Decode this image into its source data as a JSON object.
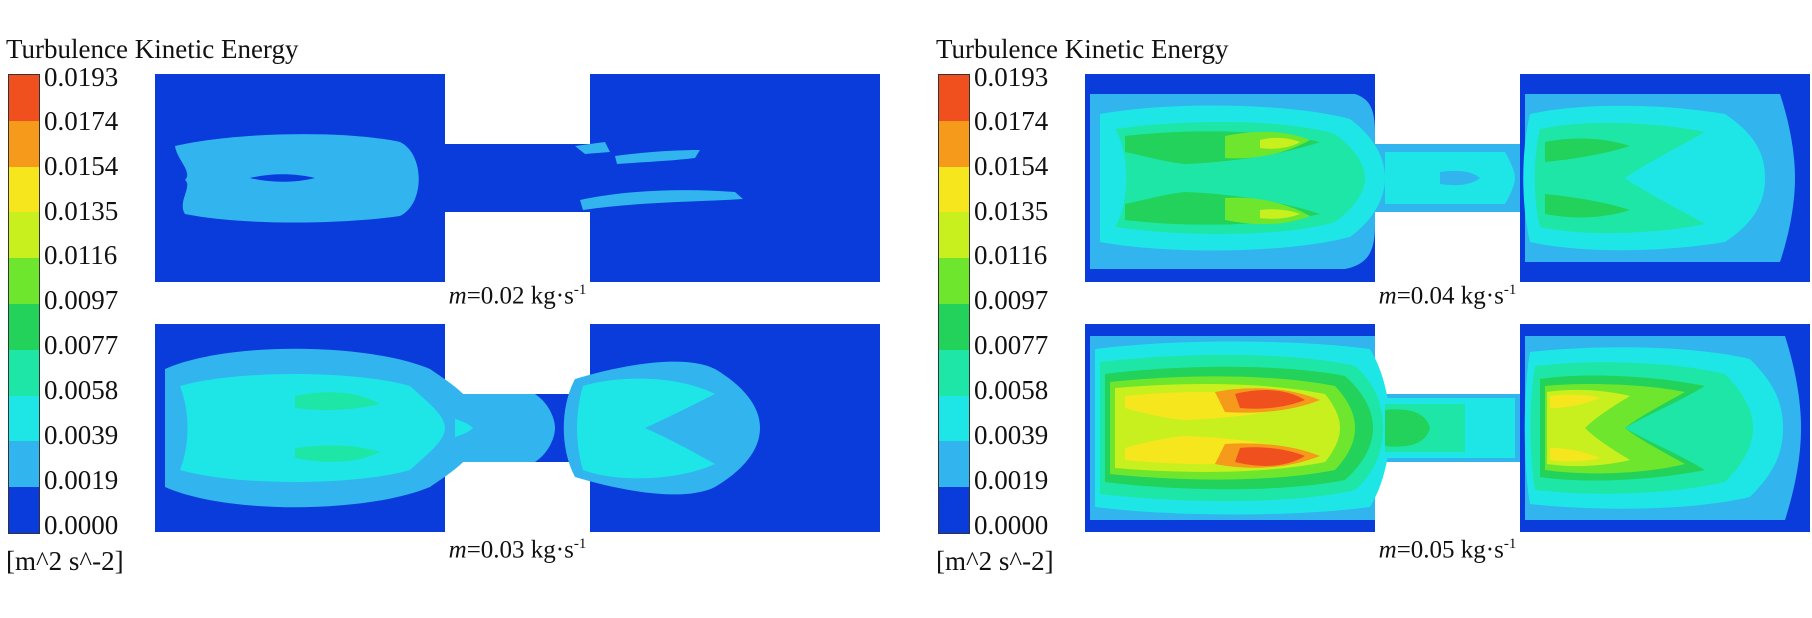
{
  "legend": {
    "title": "Turbulence Kinetic Energy",
    "unit": "[m^2 s^-2]",
    "ticks": [
      "0.0193",
      "0.0174",
      "0.0154",
      "0.0135",
      "0.0116",
      "0.0097",
      "0.0077",
      "0.0058",
      "0.0039",
      "0.0019",
      "0.0000"
    ],
    "colors_top_to_bottom": [
      "#f0501e",
      "#f59a1a",
      "#f5e61e",
      "#c8f01e",
      "#6ee62e",
      "#22d25a",
      "#1ee6a6",
      "#1ee6e6",
      "#32b4ee",
      "#0a3cdc"
    ]
  },
  "panels": [
    {
      "id": "a",
      "caption": {
        "var": "m",
        "value": "=0.02 kg·s",
        "exp": "-1"
      },
      "level": 0.02
    },
    {
      "id": "b",
      "caption": {
        "var": "m",
        "value": "=0.03 kg·s",
        "exp": "-1"
      },
      "level": 0.03
    },
    {
      "id": "c",
      "caption": {
        "var": "m",
        "value": "=0.04 kg·s",
        "exp": "-1"
      },
      "level": 0.04
    },
    {
      "id": "d",
      "caption": {
        "var": "m",
        "value": "=0.05 kg·s",
        "exp": "-1"
      },
      "level": 0.05
    }
  ]
}
